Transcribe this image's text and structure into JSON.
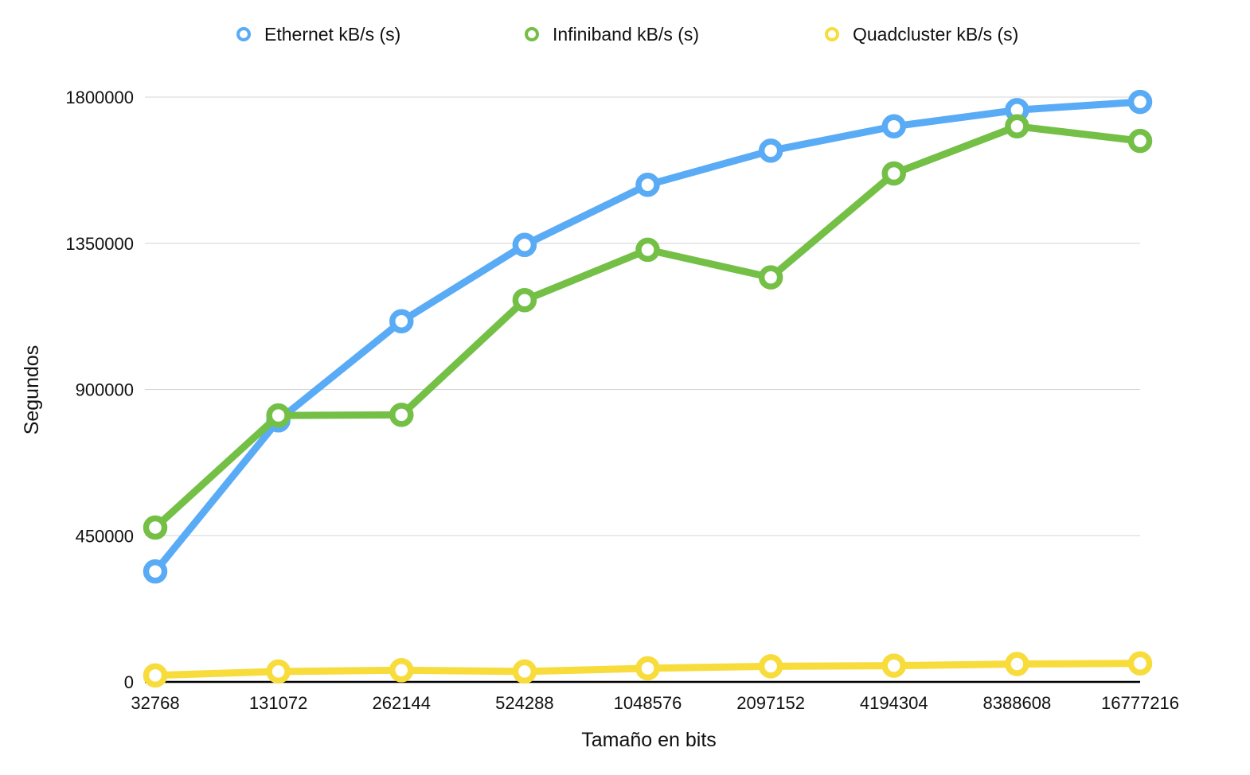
{
  "chart_data": {
    "type": "line",
    "title": "",
    "xlabel": "Tamaño en bits",
    "ylabel": "Segundos",
    "categories": [
      "32768",
      "131072",
      "262144",
      "524288",
      "1048576",
      "2097152",
      "4194304",
      "8388608",
      "16777216"
    ],
    "ylim": [
      0,
      1800000
    ],
    "yticks": [
      "0",
      "450000",
      "900000",
      "1350000",
      "1800000"
    ],
    "grid": "horizontal",
    "legend_position": "top",
    "series": [
      {
        "name": "Ethernet kB/s (s)",
        "color": "#5aabf5",
        "values": [
          340000,
          805000,
          1110000,
          1345000,
          1530000,
          1635000,
          1710000,
          1760000,
          1785000
        ]
      },
      {
        "name": "Infiniband kB/s (s)",
        "color": "#74bf45",
        "values": [
          475000,
          820000,
          822000,
          1175000,
          1330000,
          1245000,
          1565000,
          1710000,
          1665000
        ]
      },
      {
        "name": "Quadcluster kB/s (s)",
        "color": "#f7dc3c",
        "values": [
          20000,
          32000,
          36000,
          32000,
          42000,
          48000,
          50000,
          55000,
          57000
        ]
      }
    ]
  }
}
